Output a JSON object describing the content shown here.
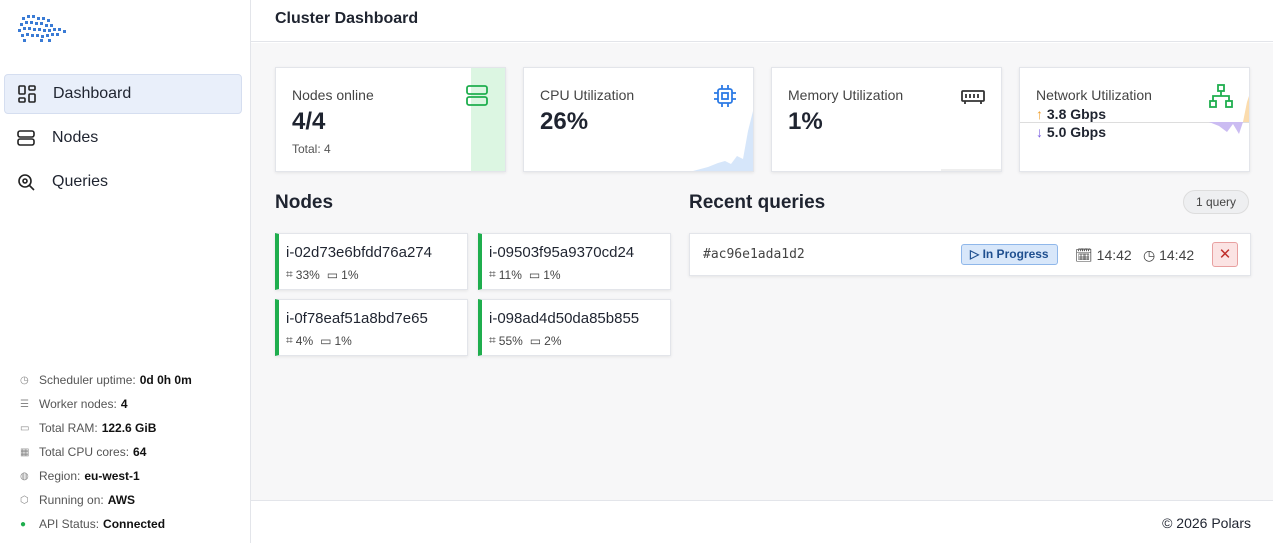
{
  "sidebar": {
    "nav": [
      "Dashboard",
      "Nodes",
      "Queries"
    ],
    "stats": [
      {
        "label": "Scheduler uptime:",
        "value": "0d 0h 0m"
      },
      {
        "label": "Worker nodes:",
        "value": "4"
      },
      {
        "label": "Total RAM:",
        "value": "122.6 GiB"
      },
      {
        "label": "Total CPU cores:",
        "value": "64"
      },
      {
        "label": "Region:",
        "value": "eu-west-1"
      },
      {
        "label": "Running on:",
        "value": "AWS"
      },
      {
        "label": "API Status:",
        "value": "Connected"
      }
    ]
  },
  "header": {
    "title": "Cluster Dashboard"
  },
  "cards": [
    {
      "title": "Nodes online",
      "value": "4/4",
      "sub": "Total: 4"
    },
    {
      "title": "CPU Utilization",
      "value": "26%"
    },
    {
      "title": "Memory Utilization",
      "value": "1%"
    },
    {
      "title": "Network Utilization",
      "up": "3.8 Gbps",
      "down": "5.0 Gbps"
    }
  ],
  "nodes": {
    "title": "Nodes",
    "items": [
      {
        "id": "i-02d73e6bfdd76a274",
        "cpu": "33%",
        "mem": "1%"
      },
      {
        "id": "i-09503f95a9370cd24",
        "cpu": "11%",
        "mem": "1%"
      },
      {
        "id": "i-0f78eaf51a8bd7e65",
        "cpu": "4%",
        "mem": "1%"
      },
      {
        "id": "i-098ad4d50da85b855",
        "cpu": "55%",
        "mem": "2%"
      }
    ]
  },
  "queries": {
    "title": "Recent queries",
    "count": "1 query",
    "items": [
      {
        "id": "#ac96e1ada1d2",
        "status": "In Progress",
        "created": "14:42",
        "started": "14:42"
      }
    ]
  },
  "footer": "© 2026 Polars"
}
